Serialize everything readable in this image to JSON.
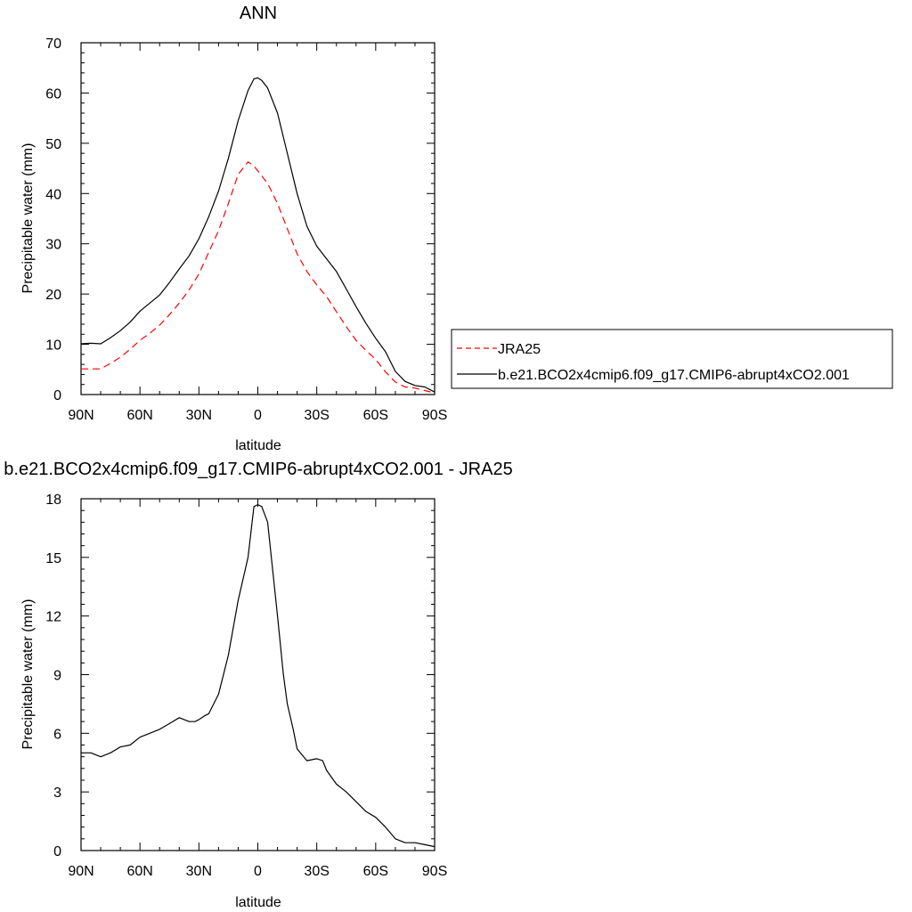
{
  "chart_data": [
    {
      "type": "line",
      "title": "ANN",
      "xlabel": "latitude",
      "ylabel": "Precipitable water (mm)",
      "x_ticks": [
        90,
        60,
        30,
        0,
        -30,
        -60,
        -90
      ],
      "x_tick_labels": [
        "90N",
        "60N",
        "30N",
        "0",
        "30S",
        "60S",
        "90S"
      ],
      "xlim": [
        90,
        -90
      ],
      "y_ticks": [
        0,
        10,
        20,
        30,
        40,
        50,
        60,
        70
      ],
      "ylim": [
        0,
        70
      ],
      "legend_placement": "right",
      "x": [
        90,
        85,
        80,
        75,
        70,
        65,
        60,
        55,
        50,
        45,
        40,
        35,
        30,
        25,
        20,
        15,
        10,
        5,
        2,
        0,
        -2,
        -5,
        -10,
        -15,
        -20,
        -25,
        -30,
        -35,
        -40,
        -45,
        -50,
        -55,
        -60,
        -65,
        -70,
        -75,
        -80,
        -85,
        -90
      ],
      "series": [
        {
          "name": "JRA25",
          "color": "#ff0000",
          "dash": "dashed",
          "values": [
            5.1,
            5.1,
            5.1,
            6.2,
            7.4,
            9.0,
            10.8,
            12.2,
            13.8,
            15.9,
            18.2,
            20.8,
            24.0,
            28.3,
            32.6,
            38.0,
            43.8,
            46.3,
            45.5,
            44.5,
            43.5,
            42.0,
            38.0,
            33.0,
            28.0,
            24.5,
            21.8,
            19.5,
            16.5,
            13.5,
            10.8,
            8.8,
            7.0,
            4.5,
            2.5,
            1.5,
            1.3,
            0.8,
            0.3
          ]
        },
        {
          "name": "b.e21.BCO2x4cmip6.f09_g17.CMIP6-abrupt4xCO2.001",
          "color": "#000000",
          "dash": "solid",
          "values": [
            10.1,
            10.2,
            10.1,
            11.3,
            12.7,
            14.4,
            16.6,
            18.2,
            19.8,
            22.3,
            25.0,
            27.6,
            31.0,
            35.4,
            40.5,
            47.0,
            54.5,
            60.5,
            62.8,
            63.0,
            62.5,
            61.0,
            56.0,
            48.0,
            40.0,
            33.5,
            29.5,
            27.0,
            24.5,
            21.0,
            17.5,
            14.2,
            11.2,
            8.5,
            4.6,
            2.6,
            1.8,
            1.5,
            0.5
          ]
        }
      ]
    },
    {
      "type": "line",
      "title": "b.e21.BCO2x4cmip6.f09_g17.CMIP6-abrupt4xCO2.001 - JRA25",
      "xlabel": "latitude",
      "ylabel": "Precipitable water (mm)",
      "x_ticks": [
        90,
        60,
        30,
        0,
        -30,
        -60,
        -90
      ],
      "x_tick_labels": [
        "90N",
        "60N",
        "30N",
        "0",
        "30S",
        "60S",
        "90S"
      ],
      "xlim": [
        90,
        -90
      ],
      "y_ticks": [
        0,
        3,
        6,
        9,
        12,
        15,
        18
      ],
      "ylim": [
        0,
        18
      ],
      "x": [
        90,
        85,
        80,
        75,
        70,
        65,
        60,
        55,
        50,
        45,
        40,
        35,
        32,
        30,
        27,
        25,
        20,
        15,
        10,
        5,
        2,
        0,
        -2,
        -5,
        -10,
        -13,
        -15,
        -18,
        -20,
        -25,
        -30,
        -33,
        -35,
        -40,
        -45,
        -50,
        -55,
        -60,
        -65,
        -70,
        -75,
        -80,
        -85,
        -90
      ],
      "series": [
        {
          "name": "",
          "color": "#000000",
          "dash": "solid",
          "values": [
            5.0,
            5.0,
            4.8,
            5.0,
            5.3,
            5.4,
            5.8,
            6.0,
            6.2,
            6.5,
            6.8,
            6.6,
            6.6,
            6.7,
            6.9,
            7.0,
            8.0,
            10.0,
            12.8,
            15.0,
            17.6,
            17.7,
            17.6,
            16.8,
            12.0,
            9.0,
            7.5,
            6.2,
            5.2,
            4.6,
            4.7,
            4.6,
            4.1,
            3.4,
            3.0,
            2.5,
            2.0,
            1.7,
            1.2,
            0.6,
            0.4,
            0.4,
            0.3,
            0.2
          ]
        }
      ]
    }
  ]
}
